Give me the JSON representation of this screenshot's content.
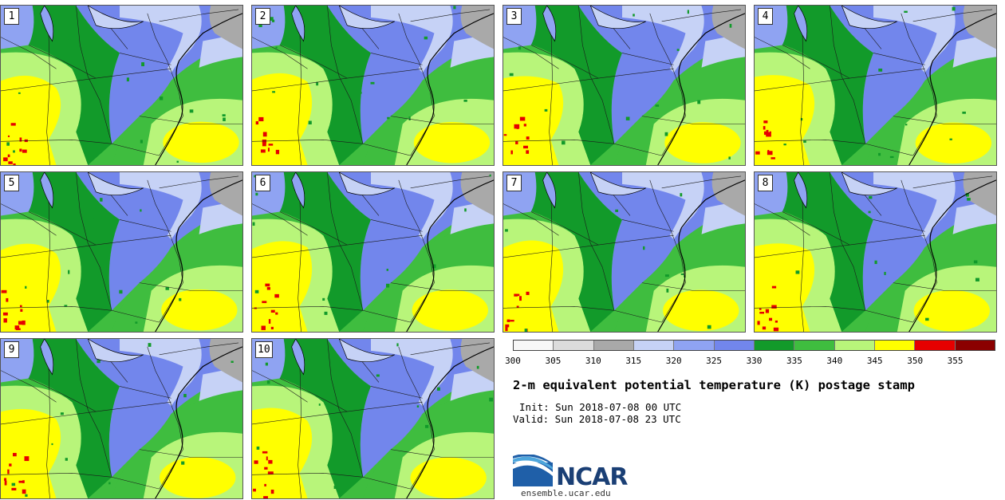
{
  "panels": [
    {
      "label": "1",
      "seed": 1
    },
    {
      "label": "2",
      "seed": 2
    },
    {
      "label": "3",
      "seed": 3
    },
    {
      "label": "4",
      "seed": 4
    },
    {
      "label": "5",
      "seed": 5
    },
    {
      "label": "6",
      "seed": 6
    },
    {
      "label": "7",
      "seed": 7
    },
    {
      "label": "8",
      "seed": 8
    },
    {
      "label": "9",
      "seed": 9
    },
    {
      "label": "10",
      "seed": 10
    }
  ],
  "colorbar": {
    "colors": [
      "#f7f7f7",
      "#dcdcdc",
      "#a9a9a9",
      "#c6d2f6",
      "#8fa3f2",
      "#7286ec",
      "#129a2a",
      "#3fbd3f",
      "#b8f57a",
      "#ffff00",
      "#e60000",
      "#8b0000"
    ],
    "ticks": [
      "300",
      "305",
      "310",
      "315",
      "320",
      "325",
      "330",
      "335",
      "340",
      "345",
      "350",
      "355"
    ],
    "unit": "K"
  },
  "palette": {
    "gray": "#a9a9a9",
    "lightblue": "#c6d2f6",
    "blue": "#7286ec",
    "midblue": "#8fa3f2",
    "darkgreen": "#129a2a",
    "green": "#3fbd3f",
    "lightgreen": "#b8f57a",
    "yellow": "#ffff00",
    "red": "#e60000",
    "boundary": "#1a1a1a"
  },
  "title": "2-m equivalent potential temperature (K) postage stamp",
  "init": "Init: Sun 2018-07-08 00 UTC",
  "valid": "Valid: Sun 2018-07-08 23 UTC",
  "logo_text": "NCAR",
  "site": "ensemble.ucar.edu"
}
